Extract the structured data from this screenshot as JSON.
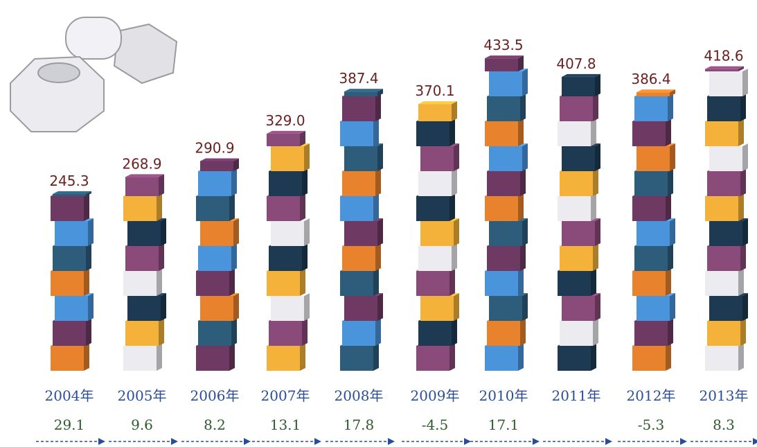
{
  "chart_data": {
    "type": "bar",
    "categories": [
      "2004年",
      "2005年",
      "2006年",
      "2007年",
      "2008年",
      "2009年",
      "2010年",
      "2011年",
      "2012年",
      "2013年"
    ],
    "values": [
      245.3,
      268.9,
      290.9,
      329.0,
      387.4,
      370.1,
      433.5,
      407.8,
      386.4,
      418.6
    ],
    "value_labels": [
      "245.3",
      "268.9",
      "290.9",
      "329.0",
      "387.4",
      "370.1",
      "433.5",
      "407.8",
      "386.4",
      "418.6"
    ],
    "growth": [
      29.1,
      9.6,
      8.2,
      13.1,
      17.8,
      -4.5,
      17.1,
      null,
      -5.3,
      8.3
    ],
    "cube_colors": [
      "#e9822c",
      "#f4b23a",
      "#4a94dc",
      "#ececf0",
      "#2e5d7c",
      "#1d3a52",
      "#6e3a64",
      "#8a4a7a"
    ]
  }
}
